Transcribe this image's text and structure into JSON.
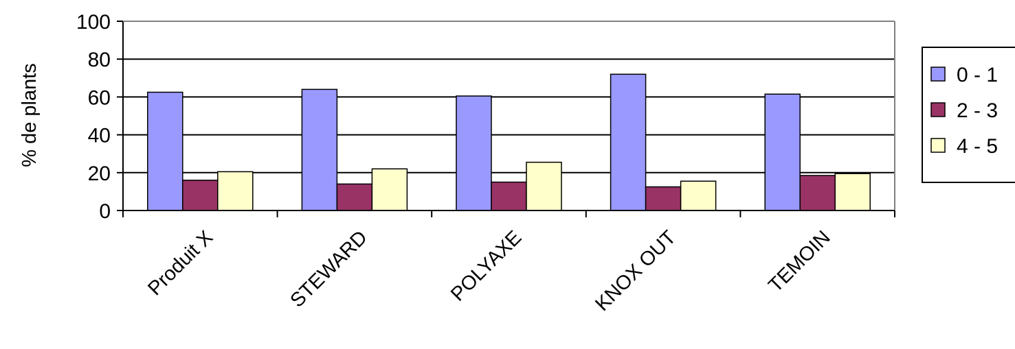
{
  "chart_data": {
    "type": "bar",
    "title": "",
    "xlabel": "",
    "ylabel": "% de plants",
    "ylim": [
      0,
      100
    ],
    "yticks": [
      0,
      20,
      40,
      60,
      80,
      100
    ],
    "grid": true,
    "legend_position": "right",
    "categories": [
      "Produit X",
      "STEWARD",
      "POLYAXE",
      "KNOX OUT",
      "TEMOIN"
    ],
    "series": [
      {
        "name": "0 - 1",
        "color": "#9999FF",
        "values": [
          62.5,
          64,
          60.5,
          72,
          61.5
        ]
      },
      {
        "name": "2 - 3",
        "color": "#993366",
        "values": [
          16,
          14,
          15,
          12.5,
          18.5
        ]
      },
      {
        "name": "4 - 5",
        "color": "#FFFFCC",
        "values": [
          20.5,
          22,
          25.5,
          15.5,
          19.5
        ]
      }
    ]
  }
}
